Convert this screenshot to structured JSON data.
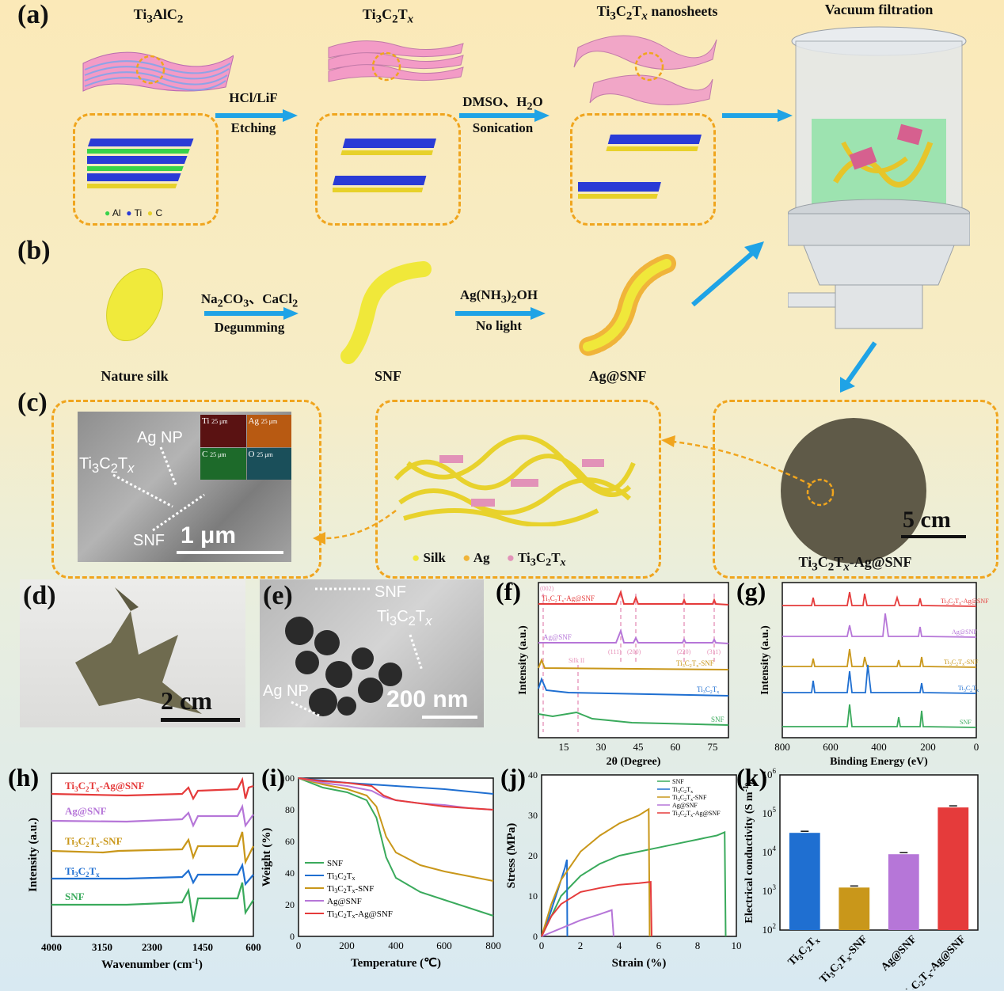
{
  "panels": {
    "a": "(a)",
    "b": "(b)",
    "c": "(c)",
    "d": "(d)",
    "e": "(e)",
    "f": "(f)",
    "g": "(g)",
    "h": "(h)",
    "i": "(i)",
    "j": "(j)",
    "k": "(k)"
  },
  "a": {
    "t1": "Ti3AlC2",
    "t2": "Ti3C2Tx",
    "t3": "Ti3C2Tx nanosheets",
    "t4": "Vacuum filtration",
    "step1_top": "HCl/LiF",
    "step1_bot": "Etching",
    "step2_top": "DMSO、H2O",
    "step2_bot": "Sonication",
    "legend": [
      "Al",
      "Ti",
      "C"
    ]
  },
  "b": {
    "step1_top": "Na2CO3、CaCl2",
    "step1_bot": "Degumming",
    "step2_top": "Ag(NH3)2OH",
    "step2_bot": "No light",
    "l1": "Nature silk",
    "l2": "SNF",
    "l3": "Ag@SNF"
  },
  "c": {
    "ag_np": "Ag NP",
    "ti": "Ti3C2Tx",
    "snf": "SNF",
    "scale": "1 μm",
    "map": [
      "Ti",
      "Ag",
      "C",
      "O"
    ],
    "map_scale": "25 μm",
    "legend": [
      "Silk",
      "Ag",
      "Ti3C2Tx"
    ],
    "film_scale": "5 cm",
    "film_label": "Ti3C2Tx-Ag@SNF"
  },
  "d": {
    "scale": "2 cm"
  },
  "e": {
    "snf": "SNF",
    "ti": "Ti3C2Tx",
    "ag": "Ag NP",
    "scale": "200 nm"
  },
  "f": {
    "xlabel": "2θ (Degree)",
    "ylabel": "Intensity (a.u.)",
    "xticks": [
      "15",
      "30",
      "45",
      "60",
      "75"
    ],
    "series": [
      "Ti3C2Tx-Ag@SNF",
      "Ag@SNF",
      "Ti3C2Tx-SNF",
      "Ti3C2Tx",
      "SNF"
    ],
    "peaks": [
      "(002)",
      "(111)",
      "(200)",
      "(220)",
      "(311)",
      "Silk II"
    ]
  },
  "g": {
    "xlabel": "Binding Energy (eV)",
    "ylabel": "Intensity (a.u.)",
    "xticks": [
      "800",
      "600",
      "400",
      "200",
      "0"
    ],
    "series": [
      "Ti3C2Tx-Ag@SNF",
      "Ag@SNF",
      "Ti3C2Tx-SNF",
      "Ti3C2Tx",
      "SNF"
    ]
  },
  "h": {
    "xlabel": "Wavenumber (cm-1)",
    "ylabel": "Intensity (a.u.)",
    "xticks": [
      "4000",
      "3150",
      "2300",
      "1450",
      "600"
    ],
    "series": [
      "Ti3C2Tx-Ag@SNF",
      "Ag@SNF",
      "Ti3C2Tx-SNF",
      "Ti3C2Tx",
      "SNF"
    ]
  },
  "i": {
    "xlabel": "Temperature (℃)",
    "ylabel": "Weight (%)",
    "xticks": [
      "0",
      "200",
      "400",
      "600",
      "800"
    ],
    "yticks": [
      "0",
      "20",
      "40",
      "60",
      "80",
      "100"
    ],
    "legend": [
      "SNF",
      "Ti3C2Tx",
      "Ti3C2Tx-SNF",
      "Ag@SNF",
      "Ti3C2Tx-Ag@SNF"
    ]
  },
  "j": {
    "xlabel": "Strain (%)",
    "ylabel": "Stress (MPa)",
    "xticks": [
      "0",
      "2",
      "4",
      "6",
      "8",
      "10"
    ],
    "yticks": [
      "0",
      "10",
      "20",
      "30",
      "40"
    ],
    "legend": [
      "SNF",
      "Ti3C2Tx",
      "Ti3C2Tx-SNF",
      "Ag@SNF",
      "Ti3C2Tx-Ag@SNF"
    ]
  },
  "k": {
    "ylabel": "Electrical conductivity (S m-1)",
    "yticks": [
      "10^2",
      "10^3",
      "10^4",
      "10^5",
      "10^6"
    ],
    "categories": [
      "Ti3C2Tx",
      "Ti3C2Tx-SNF",
      "Ag@SNF",
      "Ti3C2Tx-Ag@SNF"
    ]
  },
  "colors": {
    "SNF": "#3aaa5c",
    "Ti3C2Tx": "#1f6fd1",
    "Ti3C2Tx-SNF": "#c9971a",
    "Ag@SNF": "#b676d8",
    "Ti3C2Tx-Ag@SNF": "#e53b3b",
    "dash": "#f0a51e",
    "arrow": "#1fa3e6"
  },
  "chart_data": [
    {
      "type": "line",
      "panel": "i",
      "xlabel": "Temperature (℃)",
      "ylabel": "Weight (%)",
      "xlim": [
        0,
        800
      ],
      "ylim": [
        0,
        100
      ],
      "series": [
        {
          "name": "SNF",
          "x": [
            0,
            100,
            200,
            280,
            320,
            360,
            400,
            500,
            600,
            700,
            800
          ],
          "values": [
            100,
            94,
            91,
            86,
            75,
            50,
            37,
            28,
            23,
            18,
            13
          ]
        },
        {
          "name": "Ti3C2Tx",
          "x": [
            0,
            200,
            400,
            600,
            800
          ],
          "values": [
            100,
            97,
            95,
            93,
            90
          ]
        },
        {
          "name": "Ti3C2Tx-SNF",
          "x": [
            0,
            100,
            200,
            280,
            320,
            360,
            400,
            500,
            600,
            700,
            800
          ],
          "values": [
            100,
            96,
            93,
            89,
            82,
            63,
            53,
            45,
            41,
            38,
            35
          ]
        },
        {
          "name": "Ag@SNF",
          "x": [
            0,
            100,
            200,
            300,
            350,
            400,
            500,
            600,
            700,
            800
          ],
          "values": [
            100,
            97,
            95,
            92,
            88,
            86,
            84,
            83,
            81,
            80
          ]
        },
        {
          "name": "Ti3C2Tx-Ag@SNF",
          "x": [
            0,
            100,
            200,
            300,
            350,
            400,
            500,
            600,
            700,
            800
          ],
          "values": [
            100,
            98,
            97,
            95,
            89,
            86,
            84,
            82,
            81,
            80
          ]
        }
      ]
    },
    {
      "type": "line",
      "panel": "j",
      "xlabel": "Strain (%)",
      "ylabel": "Stress (MPa)",
      "xlim": [
        0,
        10
      ],
      "ylim": [
        0,
        40
      ],
      "series": [
        {
          "name": "SNF",
          "x": [
            0,
            0.5,
            1,
            2,
            3,
            4,
            5,
            6,
            7,
            8,
            9,
            9.4,
            9.45
          ],
          "values": [
            0,
            5,
            10,
            15,
            18,
            20,
            21,
            22,
            23,
            24,
            25,
            25.8,
            0
          ]
        },
        {
          "name": "Ti3C2Tx",
          "x": [
            0,
            0.4,
            0.8,
            1.2,
            1.3,
            1.32
          ],
          "values": [
            0,
            5,
            11,
            17,
            19,
            0
          ]
        },
        {
          "name": "Ti3C2Tx-SNF",
          "x": [
            0,
            0.5,
            1,
            2,
            3,
            4,
            5,
            5.5,
            5.55
          ],
          "values": [
            0,
            8,
            14,
            21,
            25,
            28,
            30,
            31.5,
            0
          ]
        },
        {
          "name": "Ag@SNF",
          "x": [
            0,
            1,
            2,
            3,
            3.6,
            3.7
          ],
          "values": [
            0,
            2,
            4,
            5.5,
            6.5,
            0
          ]
        },
        {
          "name": "Ti3C2Tx-Ag@SNF",
          "x": [
            0,
            0.5,
            1,
            2,
            3,
            4,
            5,
            5.6,
            5.65
          ],
          "values": [
            0,
            5,
            8,
            11,
            12,
            12.8,
            13.2,
            13.5,
            0
          ]
        }
      ]
    },
    {
      "type": "bar",
      "panel": "k",
      "ylabel": "Electrical conductivity (S m-1)",
      "yscale": "log",
      "ylim": [
        100,
        1000000
      ],
      "categories": [
        "Ti3C2Tx",
        "Ti3C2Tx-SNF",
        "Ag@SNF",
        "Ti3C2Tx-Ag@SNF"
      ],
      "values": [
        32000,
        1250,
        9000,
        145000
      ]
    }
  ]
}
